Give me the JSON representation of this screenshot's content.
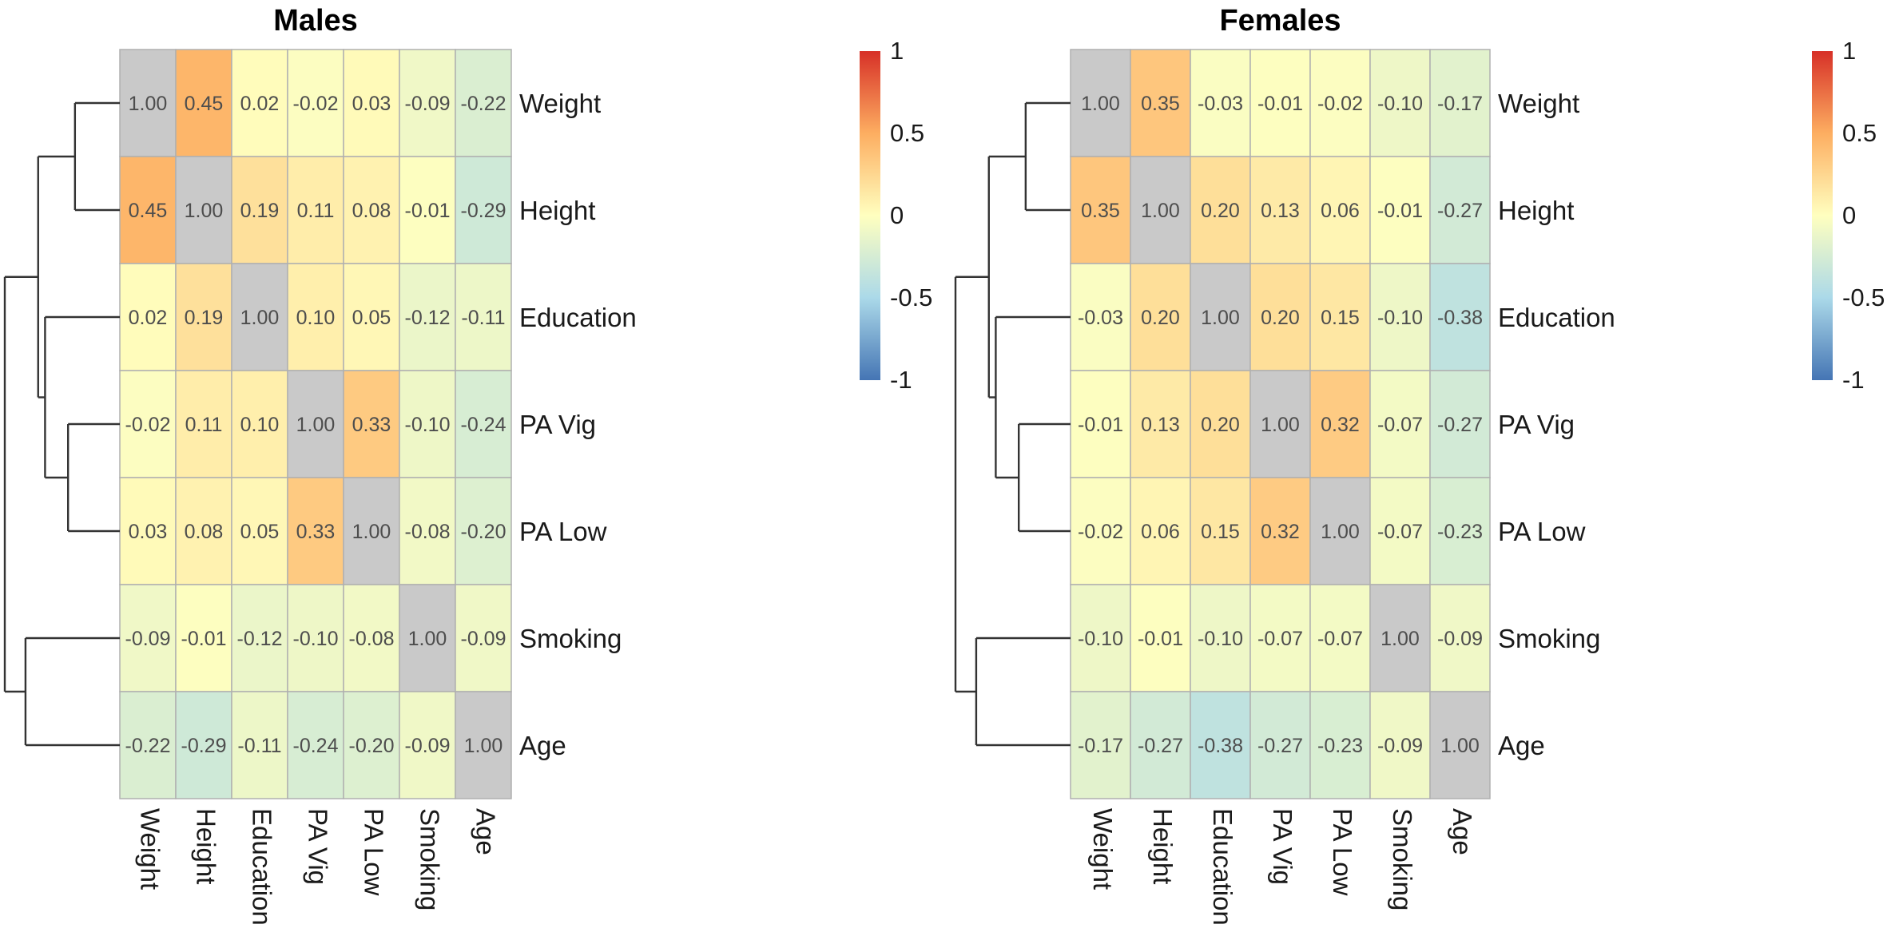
{
  "chart_data": [
    {
      "type": "heatmap",
      "title": "Males",
      "rows": [
        "Weight",
        "Height",
        "Education",
        "PA Vig",
        "PA Low",
        "Smoking",
        "Age"
      ],
      "columns": [
        "Weight",
        "Height",
        "Education",
        "PA Vig",
        "PA Low",
        "Smoking",
        "Age"
      ],
      "values": [
        [
          1.0,
          0.45,
          0.02,
          -0.02,
          0.03,
          -0.09,
          -0.22
        ],
        [
          0.45,
          1.0,
          0.19,
          0.11,
          0.08,
          -0.01,
          -0.29
        ],
        [
          0.02,
          0.19,
          1.0,
          0.1,
          0.05,
          -0.12,
          -0.11
        ],
        [
          -0.02,
          0.11,
          0.1,
          1.0,
          0.33,
          -0.1,
          -0.24
        ],
        [
          0.03,
          0.08,
          0.05,
          0.33,
          1.0,
          -0.08,
          -0.2
        ],
        [
          -0.09,
          -0.01,
          -0.12,
          -0.1,
          -0.08,
          1.0,
          -0.09
        ],
        [
          -0.22,
          -0.29,
          -0.11,
          -0.24,
          -0.2,
          -0.09,
          1.0
        ]
      ],
      "value_labels": [
        [
          "1.00",
          "0.45",
          "0.02",
          "-0.02",
          "0.03",
          "-0.09",
          "-0.22"
        ],
        [
          "0.45",
          "1.00",
          "0.19",
          "0.11",
          "0.08",
          "-0.01",
          "-0.29"
        ],
        [
          "0.02",
          "0.19",
          "1.00",
          "0.10",
          "0.05",
          "-0.12",
          "-0.11"
        ],
        [
          "-0.02",
          "0.11",
          "0.10",
          "1.00",
          "0.33",
          "-0.10",
          "-0.24"
        ],
        [
          "0.03",
          "0.08",
          "0.05",
          "0.33",
          "1.00",
          "-0.08",
          "-0.20"
        ],
        [
          "-0.09",
          "-0.01",
          "-0.12",
          "-0.10",
          "-0.08",
          "1.00",
          "-0.09"
        ],
        [
          "-0.22",
          "-0.29",
          "-0.11",
          "-0.24",
          "-0.20",
          "-0.09",
          "1.00"
        ]
      ],
      "diagonal_color": "#c9c9c9",
      "color_scale": {
        "range": [
          -1,
          1
        ],
        "ticks": [
          "1",
          "0.5",
          "0",
          "-0.5",
          "-1"
        ],
        "stops": [
          {
            "value": -1,
            "color": "#4575b4"
          },
          {
            "value": -0.5,
            "color": "#abd9e9"
          },
          {
            "value": 0,
            "color": "#ffffbf"
          },
          {
            "value": 0.5,
            "color": "#fdae61"
          },
          {
            "value": 1,
            "color": "#d73027"
          }
        ]
      },
      "legend_position": "right",
      "dendrogram": "rows"
    },
    {
      "type": "heatmap",
      "title": "Females",
      "rows": [
        "Weight",
        "Height",
        "Education",
        "PA Vig",
        "PA Low",
        "Smoking",
        "Age"
      ],
      "columns": [
        "Weight",
        "Height",
        "Education",
        "PA Vig",
        "PA Low",
        "Smoking",
        "Age"
      ],
      "values": [
        [
          1.0,
          0.35,
          -0.03,
          -0.01,
          -0.02,
          -0.1,
          -0.17
        ],
        [
          0.35,
          1.0,
          0.2,
          0.13,
          0.06,
          -0.01,
          -0.27
        ],
        [
          -0.03,
          0.2,
          1.0,
          0.2,
          0.15,
          -0.1,
          -0.38
        ],
        [
          -0.01,
          0.13,
          0.2,
          1.0,
          0.32,
          -0.07,
          -0.27
        ],
        [
          -0.02,
          0.06,
          0.15,
          0.32,
          1.0,
          -0.07,
          -0.23
        ],
        [
          -0.1,
          -0.01,
          -0.1,
          -0.07,
          -0.07,
          1.0,
          -0.09
        ],
        [
          -0.17,
          -0.27,
          -0.38,
          -0.27,
          -0.23,
          -0.09,
          1.0
        ]
      ],
      "value_labels": [
        [
          "1.00",
          "0.35",
          "-0.03",
          "-0.01",
          "-0.02",
          "-0.10",
          "-0.17"
        ],
        [
          "0.35",
          "1.00",
          "0.20",
          "0.13",
          "0.06",
          "-0.01",
          "-0.27"
        ],
        [
          "-0.03",
          "0.20",
          "1.00",
          "0.20",
          "0.15",
          "-0.10",
          "-0.38"
        ],
        [
          "-0.01",
          "0.13",
          "0.20",
          "1.00",
          "0.32",
          "-0.07",
          "-0.27"
        ],
        [
          "-0.02",
          "0.06",
          "0.15",
          "0.32",
          "1.00",
          "-0.07",
          "-0.23"
        ],
        [
          "-0.10",
          "-0.01",
          "-0.10",
          "-0.07",
          "-0.07",
          "1.00",
          "-0.09"
        ],
        [
          "-0.17",
          "-0.27",
          "-0.38",
          "-0.27",
          "-0.23",
          "-0.09",
          "1.00"
        ]
      ],
      "diagonal_color": "#c9c9c9",
      "color_scale": {
        "range": [
          -1,
          1
        ],
        "ticks": [
          "1",
          "0.5",
          "0",
          "-0.5",
          "-1"
        ],
        "stops": [
          {
            "value": -1,
            "color": "#4575b4"
          },
          {
            "value": -0.5,
            "color": "#abd9e9"
          },
          {
            "value": 0,
            "color": "#ffffbf"
          },
          {
            "value": 0.5,
            "color": "#fdae61"
          },
          {
            "value": 1,
            "color": "#d73027"
          }
        ]
      },
      "legend_position": "right",
      "dendrogram": "rows"
    }
  ]
}
